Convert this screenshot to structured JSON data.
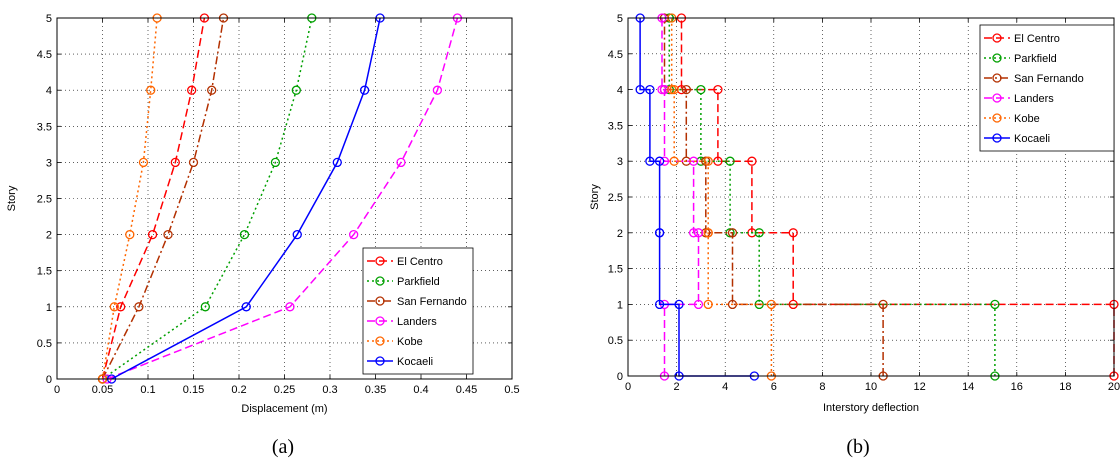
{
  "figure": {
    "panel_labels": [
      "(a)",
      "(b)"
    ]
  },
  "chart_data": [
    {
      "type": "line",
      "title": "",
      "xlabel": "Displacement (m)",
      "ylabel": "Story",
      "xlim": [
        0,
        0.5
      ],
      "ylim": [
        0,
        5
      ],
      "xticks": [
        0,
        0.05,
        0.1,
        0.15,
        0.2,
        0.25,
        0.3,
        0.35,
        0.4,
        0.45,
        0.5
      ],
      "xtick_labels": [
        "0",
        "0.05",
        "0.1",
        "0.15",
        "0.2",
        "0.25",
        "0.3",
        "0.35",
        "0.4",
        "0.45",
        "0.5"
      ],
      "yticks": [
        0,
        0.5,
        1,
        1.5,
        2,
        2.5,
        3,
        3.5,
        4,
        4.5,
        5
      ],
      "ytick_labels": [
        "0",
        "0.5",
        "1",
        "1.5",
        "2",
        "2.5",
        "3",
        "3.5",
        "4",
        "4.5",
        "5"
      ],
      "grid": true,
      "legend_position": "bottom-right",
      "series": [
        {
          "name": "El Centro",
          "color": "#ff0000",
          "dash": "8,4",
          "x": [
            0.05,
            0.07,
            0.105,
            0.13,
            0.148,
            0.162
          ],
          "y": [
            0,
            1,
            2,
            3,
            4,
            5
          ]
        },
        {
          "name": "Parkfield",
          "color": "#00a000",
          "dash": "2,3",
          "x": [
            0.05,
            0.163,
            0.206,
            0.24,
            0.263,
            0.28
          ],
          "y": [
            0,
            1,
            2,
            3,
            4,
            5
          ]
        },
        {
          "name": "San Fernando",
          "color": "#b33000",
          "dash": "8,3,2,3",
          "x": [
            0.05,
            0.09,
            0.122,
            0.15,
            0.17,
            0.183
          ],
          "y": [
            0,
            1,
            2,
            3,
            4,
            5
          ]
        },
        {
          "name": "Landers",
          "color": "#ff00ff",
          "dash": "8,4",
          "x": [
            0.055,
            0.256,
            0.326,
            0.378,
            0.418,
            0.44
          ],
          "y": [
            0,
            1,
            2,
            3,
            4,
            5
          ]
        },
        {
          "name": "Kobe",
          "color": "#ff6600",
          "dash": "2,3",
          "x": [
            0.05,
            0.063,
            0.08,
            0.095,
            0.103,
            0.11
          ],
          "y": [
            0,
            1,
            2,
            3,
            4,
            5
          ]
        },
        {
          "name": "Kocaeli",
          "color": "#0000ff",
          "dash": "",
          "x": [
            0.06,
            0.208,
            0.264,
            0.308,
            0.338,
            0.355
          ],
          "y": [
            0,
            1,
            2,
            3,
            4,
            5
          ]
        }
      ]
    },
    {
      "type": "line",
      "title": "",
      "xlabel": "Interstory deflection",
      "ylabel": "Story",
      "xlim": [
        0,
        20
      ],
      "ylim": [
        0,
        5
      ],
      "xticks": [
        0,
        2,
        4,
        6,
        8,
        10,
        12,
        14,
        16,
        18,
        20
      ],
      "xtick_labels": [
        "0",
        "2",
        "4",
        "6",
        "8",
        "10",
        "12",
        "14",
        "16",
        "18",
        "20"
      ],
      "yticks": [
        0,
        0.5,
        1,
        1.5,
        2,
        2.5,
        3,
        3.5,
        4,
        4.5,
        5
      ],
      "ytick_labels": [
        "0",
        "0.5",
        "1",
        "1.5",
        "2",
        "2.5",
        "3",
        "3.5",
        "4",
        "4.5",
        "5"
      ],
      "grid": true,
      "legend_position": "top-right",
      "series": [
        {
          "name": "El Centro",
          "color": "#ff0000",
          "dash": "8,4",
          "x": [
            20,
            20,
            6.8,
            6.8,
            5.1,
            5.1,
            3.7,
            3.7,
            2.2,
            2.2
          ],
          "y": [
            0,
            1,
            1,
            2,
            2,
            3,
            3,
            4,
            4,
            5
          ]
        },
        {
          "name": "Parkfield",
          "color": "#00a000",
          "dash": "2,3",
          "x": [
            15.1,
            15.1,
            5.4,
            5.4,
            4.2,
            4.2,
            3.0,
            3.0,
            1.7,
            1.7
          ],
          "y": [
            0,
            1,
            1,
            2,
            2,
            3,
            3,
            4,
            4,
            5
          ]
        },
        {
          "name": "San Fernando",
          "color": "#b33000",
          "dash": "8,3,2,3",
          "x": [
            10.5,
            10.5,
            4.3,
            4.3,
            3.2,
            3.2,
            2.4,
            2.4,
            1.5,
            1.5
          ],
          "y": [
            0,
            1,
            1,
            2,
            2,
            3,
            3,
            4,
            4,
            5
          ]
        },
        {
          "name": "Landers",
          "color": "#ff00ff",
          "dash": "8,4",
          "x": [
            1.5,
            1.5,
            2.9,
            2.9,
            2.7,
            2.7,
            1.5,
            1.5,
            1.4,
            1.4
          ],
          "y": [
            0,
            1,
            1,
            2,
            2,
            3,
            3,
            4,
            4,
            5
          ]
        },
        {
          "name": "Kobe",
          "color": "#ff6600",
          "dash": "2,3",
          "x": [
            5.9,
            5.9,
            3.3,
            3.3,
            3.3,
            3.3,
            1.9,
            1.9,
            1.8,
            1.8
          ],
          "y": [
            0,
            1,
            1,
            2,
            2,
            3,
            3,
            4,
            4,
            5
          ]
        },
        {
          "name": "Kocaeli",
          "color": "#0000ff",
          "dash": "",
          "x": [
            5.2,
            2.1,
            2.1,
            1.3,
            1.3,
            1.3,
            1.3,
            0.9,
            0.9,
            0.5,
            0.5
          ],
          "y": [
            0,
            0,
            1,
            1,
            2,
            2,
            3,
            3,
            4,
            4,
            5
          ]
        }
      ]
    }
  ]
}
